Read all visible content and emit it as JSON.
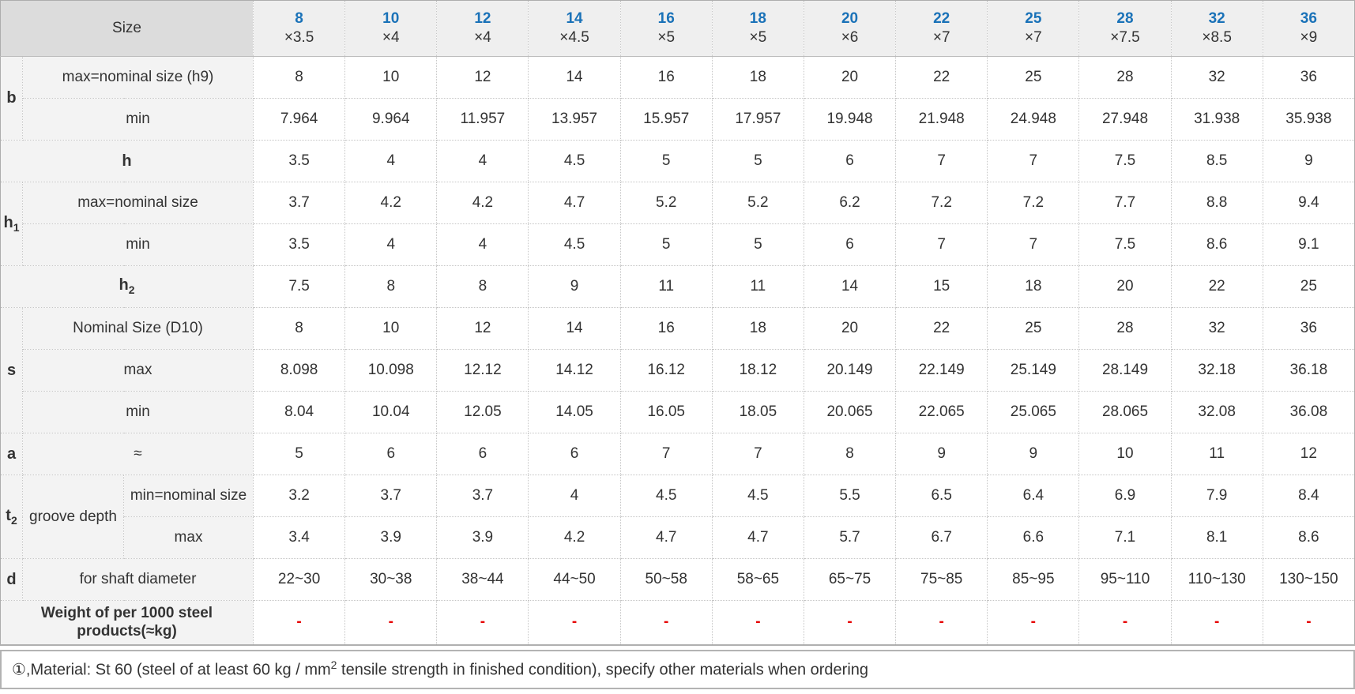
{
  "colors": {
    "accent_blue": "#1a72b8",
    "dash_red": "#e60000",
    "header_bg": "#efefef",
    "size_cell_bg": "#dcdcdc",
    "label_bg": "#f3f3f3"
  },
  "header": {
    "size_label": "Size",
    "columns": [
      {
        "n": "8",
        "x": "×3.5"
      },
      {
        "n": "10",
        "x": "×4"
      },
      {
        "n": "12",
        "x": "×4"
      },
      {
        "n": "14",
        "x": "×4.5"
      },
      {
        "n": "16",
        "x": "×5"
      },
      {
        "n": "18",
        "x": "×5"
      },
      {
        "n": "20",
        "x": "×6"
      },
      {
        "n": "22",
        "x": "×7"
      },
      {
        "n": "25",
        "x": "×7"
      },
      {
        "n": "28",
        "x": "×7.5"
      },
      {
        "n": "32",
        "x": "×8.5"
      },
      {
        "n": "36",
        "x": "×9"
      }
    ]
  },
  "sections": {
    "b": {
      "label": "b",
      "max": {
        "label": "max=nominal size (h9)",
        "values": [
          "8",
          "10",
          "12",
          "14",
          "16",
          "18",
          "20",
          "22",
          "25",
          "28",
          "32",
          "36"
        ]
      },
      "min": {
        "label": "min",
        "values": [
          "7.964",
          "9.964",
          "11.957",
          "13.957",
          "15.957",
          "17.957",
          "19.948",
          "21.948",
          "24.948",
          "27.948",
          "31.938",
          "35.938"
        ]
      }
    },
    "h": {
      "label": "h",
      "values": [
        "3.5",
        "4",
        "4",
        "4.5",
        "5",
        "5",
        "6",
        "7",
        "7",
        "7.5",
        "8.5",
        "9"
      ]
    },
    "h1": {
      "base": "h",
      "sub": "1",
      "max": {
        "label": "max=nominal size",
        "values": [
          "3.7",
          "4.2",
          "4.2",
          "4.7",
          "5.2",
          "5.2",
          "6.2",
          "7.2",
          "7.2",
          "7.7",
          "8.8",
          "9.4"
        ]
      },
      "min": {
        "label": "min",
        "values": [
          "3.5",
          "4",
          "4",
          "4.5",
          "5",
          "5",
          "6",
          "7",
          "7",
          "7.5",
          "8.6",
          "9.1"
        ]
      }
    },
    "h2": {
      "base": "h",
      "sub": "2",
      "values": [
        "7.5",
        "8",
        "8",
        "9",
        "11",
        "11",
        "14",
        "15",
        "18",
        "20",
        "22",
        "25"
      ]
    },
    "s": {
      "label": "s",
      "nominal": {
        "label": "Nominal Size (D10)",
        "values": [
          "8",
          "10",
          "12",
          "14",
          "16",
          "18",
          "20",
          "22",
          "25",
          "28",
          "32",
          "36"
        ]
      },
      "max": {
        "label": "max",
        "values": [
          "8.098",
          "10.098",
          "12.12",
          "14.12",
          "16.12",
          "18.12",
          "20.149",
          "22.149",
          "25.149",
          "28.149",
          "32.18",
          "36.18"
        ]
      },
      "min": {
        "label": "min",
        "values": [
          "8.04",
          "10.04",
          "12.05",
          "14.05",
          "16.05",
          "18.05",
          "20.065",
          "22.065",
          "25.065",
          "28.065",
          "32.08",
          "36.08"
        ]
      }
    },
    "a": {
      "label": "a",
      "approx": {
        "label": "≈",
        "values": [
          "5",
          "6",
          "6",
          "6",
          "7",
          "7",
          "8",
          "9",
          "9",
          "10",
          "11",
          "12"
        ]
      }
    },
    "t2": {
      "base": "t",
      "sub": "2",
      "desc": "groove depth",
      "min": {
        "label": "min=nominal size",
        "values": [
          "3.2",
          "3.7",
          "3.7",
          "4",
          "4.5",
          "4.5",
          "5.5",
          "6.5",
          "6.4",
          "6.9",
          "7.9",
          "8.4"
        ]
      },
      "max": {
        "label": "max",
        "values": [
          "3.4",
          "3.9",
          "3.9",
          "4.2",
          "4.7",
          "4.7",
          "5.7",
          "6.7",
          "6.6",
          "7.1",
          "8.1",
          "8.6"
        ]
      }
    },
    "d": {
      "label": "d",
      "shaft": {
        "label": "for shaft diameter",
        "values": [
          "22~30",
          "30~38",
          "38~44",
          "44~50",
          "50~58",
          "58~65",
          "65~75",
          "75~85",
          "85~95",
          "95~110",
          "110~130",
          "130~150"
        ]
      }
    },
    "weight": {
      "label": "Weight of per 1000 steel products(≈kg)",
      "values": [
        "-",
        "-",
        "-",
        "-",
        "-",
        "-",
        "-",
        "-",
        "-",
        "-",
        "-",
        "-"
      ]
    }
  },
  "footnote": {
    "part1": "①,Material: St 60 (steel of at least 60 kg / mm",
    "sup": "2",
    "part2": " tensile strength in finished condition), specify other materials when ordering"
  }
}
